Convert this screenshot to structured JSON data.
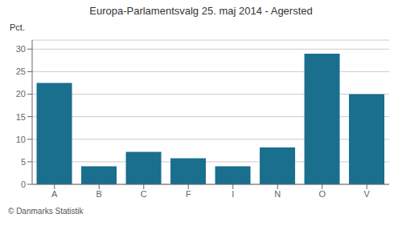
{
  "chart_data": {
    "type": "bar",
    "title": "Europa-Parlamentsvalg 25. maj 2014 - Agersted",
    "ylabel": "Pct.",
    "footer": "© Danmarks Statistik",
    "categories": [
      "A",
      "B",
      "C",
      "F",
      "I",
      "N",
      "O",
      "V"
    ],
    "values": [
      22.5,
      4.0,
      7.2,
      5.8,
      4.0,
      8.2,
      29.0,
      20.0
    ],
    "color": "#1a6e8e",
    "ylim": [
      0,
      32
    ],
    "yticks": [
      0,
      5,
      10,
      15,
      20,
      25,
      30
    ],
    "grid": true
  }
}
